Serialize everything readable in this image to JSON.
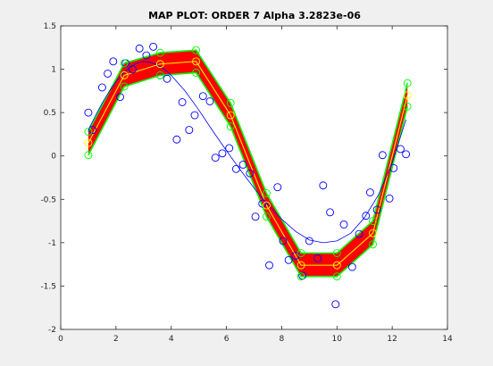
{
  "chart_data": {
    "type": "scatter",
    "title": "MAP PLOT: ORDER 7 Alpha 3.2823e-06",
    "xlabel": "",
    "ylabel": "",
    "xlim": [
      0,
      14
    ],
    "ylim": [
      -2,
      1.5
    ],
    "xticks": [
      0,
      2,
      4,
      6,
      8,
      10,
      12,
      14
    ],
    "yticks": [
      -2,
      -1.5,
      -1,
      -0.5,
      0,
      0.5,
      1,
      1.5
    ],
    "xtick_labels": [
      "0",
      "2",
      "4",
      "6",
      "8",
      "10",
      "12",
      "14"
    ],
    "ytick_labels": [
      "-2",
      "-1.5",
      "-1",
      "-0.5",
      "0",
      "0.5",
      "1",
      "1.5"
    ],
    "grid": false,
    "colors": {
      "observations": "#0000ff",
      "true_curve": "#0000ff",
      "band_fill": "#ff0000",
      "band_edge": "#00ff00",
      "mean_line": "#ffff00",
      "axes_bg": "#ffffff",
      "figure_bg": "#f0f0f0"
    },
    "observations": [
      [
        1.0,
        0.5
      ],
      [
        1.15,
        0.3
      ],
      [
        1.5,
        0.79
      ],
      [
        1.7,
        0.95
      ],
      [
        1.9,
        1.09
      ],
      [
        2.15,
        0.68
      ],
      [
        2.35,
        1.07
      ],
      [
        2.6,
        1.0
      ],
      [
        2.85,
        1.24
      ],
      [
        3.1,
        1.16
      ],
      [
        3.35,
        1.26
      ],
      [
        3.6,
        0.93
      ],
      [
        3.85,
        0.89
      ],
      [
        4.2,
        0.19
      ],
      [
        4.4,
        0.62
      ],
      [
        4.65,
        0.3
      ],
      [
        4.85,
        0.47
      ],
      [
        5.15,
        0.69
      ],
      [
        5.4,
        0.63
      ],
      [
        5.6,
        -0.02
      ],
      [
        5.85,
        0.03
      ],
      [
        6.1,
        0.09
      ],
      [
        6.35,
        -0.15
      ],
      [
        6.6,
        -0.1
      ],
      [
        6.85,
        -0.2
      ],
      [
        7.05,
        -0.7
      ],
      [
        7.3,
        -0.55
      ],
      [
        7.55,
        -1.26
      ],
      [
        7.85,
        -0.36
      ],
      [
        8.05,
        -0.98
      ],
      [
        8.25,
        -1.2
      ],
      [
        8.5,
        -1.15
      ],
      [
        8.75,
        -1.38
      ],
      [
        9.0,
        -0.98
      ],
      [
        9.3,
        -1.18
      ],
      [
        9.5,
        -0.34
      ],
      [
        9.75,
        -0.65
      ],
      [
        9.95,
        -1.71
      ],
      [
        10.25,
        -0.79
      ],
      [
        10.55,
        -1.28
      ],
      [
        10.8,
        -0.9
      ],
      [
        11.05,
        -0.69
      ],
      [
        11.2,
        -0.42
      ],
      [
        11.45,
        -0.62
      ],
      [
        11.65,
        0.01
      ],
      [
        11.9,
        -0.49
      ],
      [
        12.05,
        -0.14
      ],
      [
        12.3,
        0.08
      ],
      [
        12.5,
        0.02
      ]
    ],
    "true_curve": [
      [
        1.0,
        0.3
      ],
      [
        1.25,
        0.46
      ],
      [
        1.5,
        0.61
      ],
      [
        1.75,
        0.74
      ],
      [
        2.0,
        0.86
      ],
      [
        2.25,
        0.95
      ],
      [
        2.5,
        1.02
      ],
      [
        2.75,
        1.07
      ],
      [
        3.0,
        1.09
      ],
      [
        3.25,
        1.08
      ],
      [
        3.5,
        1.05
      ],
      [
        3.75,
        1.0
      ],
      [
        4.0,
        0.93
      ],
      [
        4.5,
        0.75
      ],
      [
        5.0,
        0.53
      ],
      [
        5.5,
        0.29
      ],
      [
        6.0,
        0.06
      ],
      [
        6.5,
        -0.16
      ],
      [
        7.0,
        -0.37
      ],
      [
        7.5,
        -0.56
      ],
      [
        8.0,
        -0.73
      ],
      [
        8.5,
        -0.87
      ],
      [
        9.0,
        -0.97
      ],
      [
        9.5,
        -1.0
      ],
      [
        10.0,
        -0.98
      ],
      [
        10.5,
        -0.89
      ],
      [
        11.0,
        -0.71
      ],
      [
        11.5,
        -0.45
      ],
      [
        12.0,
        -0.08
      ],
      [
        12.5,
        0.42
      ]
    ],
    "map_mean": [
      [
        1.0,
        0.15
      ],
      [
        2.3,
        0.93
      ],
      [
        3.6,
        1.06
      ],
      [
        4.9,
        1.09
      ],
      [
        6.15,
        0.47
      ],
      [
        7.45,
        -0.57
      ],
      [
        8.7,
        -1.26
      ],
      [
        10.0,
        -1.26
      ],
      [
        11.3,
        -0.89
      ],
      [
        12.55,
        0.7
      ]
    ],
    "band_upper": [
      [
        1.0,
        0.28
      ],
      [
        2.3,
        1.07
      ],
      [
        3.6,
        1.19
      ],
      [
        4.9,
        1.22
      ],
      [
        6.15,
        0.61
      ],
      [
        7.45,
        -0.43
      ],
      [
        8.7,
        -1.12
      ],
      [
        10.0,
        -1.12
      ],
      [
        11.3,
        -0.75
      ],
      [
        12.55,
        0.84
      ]
    ],
    "band_lower": [
      [
        1.0,
        0.01
      ],
      [
        2.3,
        0.8
      ],
      [
        3.6,
        0.93
      ],
      [
        4.9,
        0.96
      ],
      [
        6.15,
        0.34
      ],
      [
        7.45,
        -0.7
      ],
      [
        8.7,
        -1.39
      ],
      [
        10.0,
        -1.39
      ],
      [
        11.3,
        -1.02
      ],
      [
        12.55,
        0.57
      ]
    ]
  }
}
